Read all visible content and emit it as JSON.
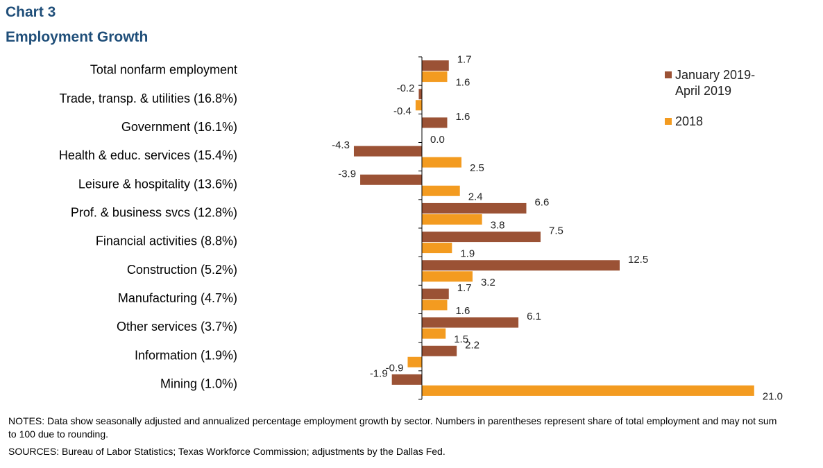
{
  "title": "Chart 3",
  "subtitle": "Employment  Growth",
  "notes": "NOTES: Data show seasonally adjusted and annualized percentage employment growth by sector. Numbers in parentheses represent share of total employment and may not sum to 100 due to rounding.",
  "sources": "SOURCES: Bureau of Labor Statistics; Texas Workforce Commission; adjustments  by the Dallas Fed.",
  "colors": {
    "series1": "#9b5235",
    "series2": "#f39b20",
    "axis": "#000000",
    "title": "#1f4e79"
  },
  "chart_data": {
    "type": "bar",
    "orientation": "horizontal",
    "categories": [
      "Total nonfarm employment",
      "Trade, transp. & utilities (16.8%)",
      "Government (16.1%)",
      "Health & educ. services (15.4%)",
      "Leisure & hospitality (13.6%)",
      "Prof. & business svcs (12.8%)",
      "Financial activities (8.8%)",
      "Construction (5.2%)",
      "Manufacturing (4.7%)",
      "Other services (3.7%)",
      "Information (1.9%)",
      "Mining (1.0%)"
    ],
    "series": [
      {
        "name": "January 2019-\nApril 2019",
        "legend_lines": [
          "January 2019-",
          "April 2019"
        ],
        "values": [
          1.7,
          -0.2,
          1.6,
          -4.3,
          -3.9,
          6.6,
          7.5,
          12.5,
          1.7,
          6.1,
          2.2,
          -1.9
        ],
        "labels": [
          "1.7",
          "-0.2",
          "1.6",
          "-4.3",
          "-3.9",
          "6.6",
          "7.5",
          "12.5",
          "1.7",
          "6.1",
          "2.2",
          "-1.9"
        ]
      },
      {
        "name": "2018",
        "legend_lines": [
          "2018"
        ],
        "values": [
          1.6,
          -0.4,
          0.0,
          2.5,
          2.4,
          3.8,
          1.9,
          3.2,
          1.6,
          1.5,
          -0.9,
          21.0
        ],
        "labels": [
          "1.6",
          "-0.4",
          "0.0",
          "2.5",
          "2.4",
          "3.8",
          "1.9",
          "3.2",
          "1.6",
          "1.5",
          "-0.9",
          "21.0"
        ]
      }
    ],
    "xlim": [
      -5,
      21
    ],
    "grid": false,
    "legend_position": "top-right",
    "xlabel": "",
    "ylabel": ""
  }
}
